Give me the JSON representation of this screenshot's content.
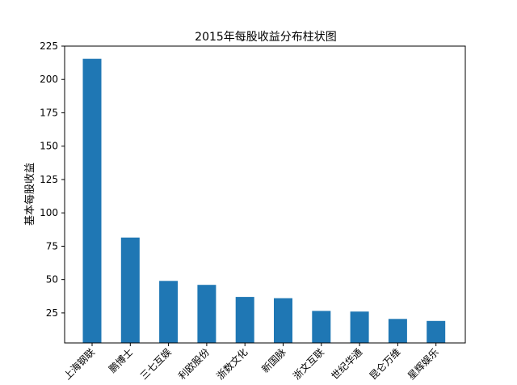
{
  "chart_data": {
    "type": "bar",
    "title": "2015年每股收益分布柱状图",
    "xlabel": "",
    "ylabel": "基本每股收益",
    "categories": [
      "上海钢联",
      "鹏博士",
      "三七互娱",
      "利欧股份",
      "浙数文化",
      "新国脉",
      "浙文互联",
      "世纪华通",
      "昆仑万维",
      "星辉娱乐"
    ],
    "values": [
      215.5,
      81.5,
      49.0,
      46.0,
      37.0,
      36.0,
      26.5,
      26.0,
      20.5,
      19.0
    ],
    "ylim": [
      2.5,
      225
    ],
    "yticks": [
      25,
      50,
      75,
      100,
      125,
      150,
      175,
      200,
      225
    ],
    "grid": false,
    "legend": "none",
    "bar_color": "#1f77b4"
  }
}
